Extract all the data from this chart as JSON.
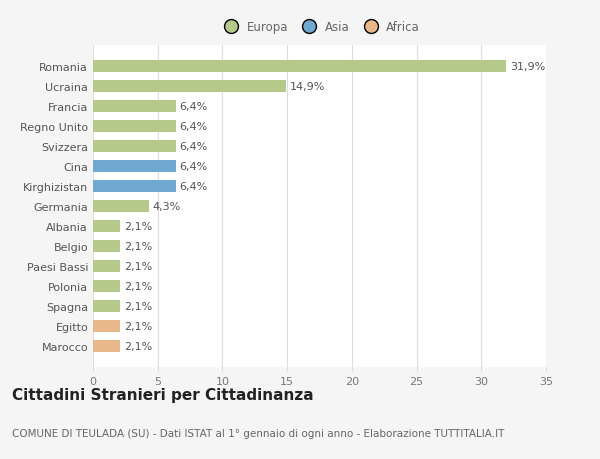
{
  "categories": [
    "Romania",
    "Ucraina",
    "Francia",
    "Regno Unito",
    "Svizzera",
    "Cina",
    "Kirghizistan",
    "Germania",
    "Albania",
    "Belgio",
    "Paesi Bassi",
    "Polonia",
    "Spagna",
    "Egitto",
    "Marocco"
  ],
  "values": [
    31.9,
    14.9,
    6.4,
    6.4,
    6.4,
    6.4,
    6.4,
    4.3,
    2.1,
    2.1,
    2.1,
    2.1,
    2.1,
    2.1,
    2.1
  ],
  "labels": [
    "31,9%",
    "14,9%",
    "6,4%",
    "6,4%",
    "6,4%",
    "6,4%",
    "6,4%",
    "4,3%",
    "2,1%",
    "2,1%",
    "2,1%",
    "2,1%",
    "2,1%",
    "2,1%",
    "2,1%"
  ],
  "colors": [
    "#b5c98a",
    "#b5c98a",
    "#b5c98a",
    "#b5c98a",
    "#b5c98a",
    "#6fa8d0",
    "#6fa8d0",
    "#b5c98a",
    "#b5c98a",
    "#b5c98a",
    "#b5c98a",
    "#b5c98a",
    "#b5c98a",
    "#e8b88a",
    "#e8b88a"
  ],
  "legend_labels": [
    "Europa",
    "Asia",
    "Africa"
  ],
  "legend_colors": [
    "#b5c98a",
    "#6fa8d0",
    "#e8b88a"
  ],
  "xlim": [
    0,
    35
  ],
  "xticks": [
    0,
    5,
    10,
    15,
    20,
    25,
    30,
    35
  ],
  "title": "Cittadini Stranieri per Cittadinanza",
  "subtitle": "COMUNE DI TEULADA (SU) - Dati ISTAT al 1° gennaio di ogni anno - Elaborazione TUTTITALIA.IT",
  "bg_color": "#f5f5f5",
  "plot_bg_color": "#ffffff",
  "grid_color": "#dddddd",
  "bar_label_fontsize": 8,
  "ytick_fontsize": 8,
  "xtick_fontsize": 8,
  "title_fontsize": 11,
  "subtitle_fontsize": 7.5,
  "legend_fontsize": 8.5,
  "bar_height": 0.62
}
